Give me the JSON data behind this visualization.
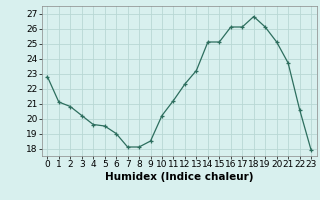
{
  "x": [
    0,
    1,
    2,
    3,
    4,
    5,
    6,
    7,
    8,
    9,
    10,
    11,
    12,
    13,
    14,
    15,
    16,
    17,
    18,
    19,
    20,
    21,
    22,
    23
  ],
  "y": [
    22.8,
    21.1,
    20.8,
    20.2,
    19.6,
    19.5,
    19.0,
    18.1,
    18.1,
    18.5,
    20.2,
    21.2,
    22.3,
    23.2,
    25.1,
    25.1,
    26.1,
    26.1,
    26.8,
    26.1,
    25.1,
    23.7,
    20.6,
    17.9
  ],
  "xlabel": "Humidex (Indice chaleur)",
  "xlim": [
    -0.5,
    23.5
  ],
  "ylim": [
    17.5,
    27.5
  ],
  "yticks": [
    18,
    19,
    20,
    21,
    22,
    23,
    24,
    25,
    26,
    27
  ],
  "xticks": [
    0,
    1,
    2,
    3,
    4,
    5,
    6,
    7,
    8,
    9,
    10,
    11,
    12,
    13,
    14,
    15,
    16,
    17,
    18,
    19,
    20,
    21,
    22,
    23
  ],
  "line_color": "#2d6e5e",
  "marker": "+",
  "bg_color": "#d8f0ee",
  "grid_color": "#b8d8d4",
  "xlabel_fontsize": 7.5,
  "tick_fontsize": 6.5
}
